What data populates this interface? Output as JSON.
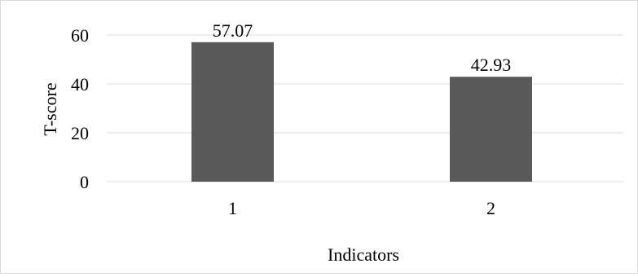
{
  "chart_data": {
    "type": "bar",
    "categories": [
      "1",
      "2"
    ],
    "values": [
      57.07,
      42.93
    ],
    "data_labels": [
      "57.07",
      "42.93"
    ],
    "title": "",
    "xlabel": "Indicators",
    "ylabel": "T-score",
    "ylim": [
      0,
      60
    ],
    "yticks": [
      {
        "value": 0,
        "label": "0"
      },
      {
        "value": 20,
        "label": "20"
      },
      {
        "value": 40,
        "label": "40"
      },
      {
        "value": 60,
        "label": "60"
      }
    ],
    "grid": true,
    "legend": "none",
    "bar_color": "#595959",
    "grid_color": "#d9d9d9"
  }
}
